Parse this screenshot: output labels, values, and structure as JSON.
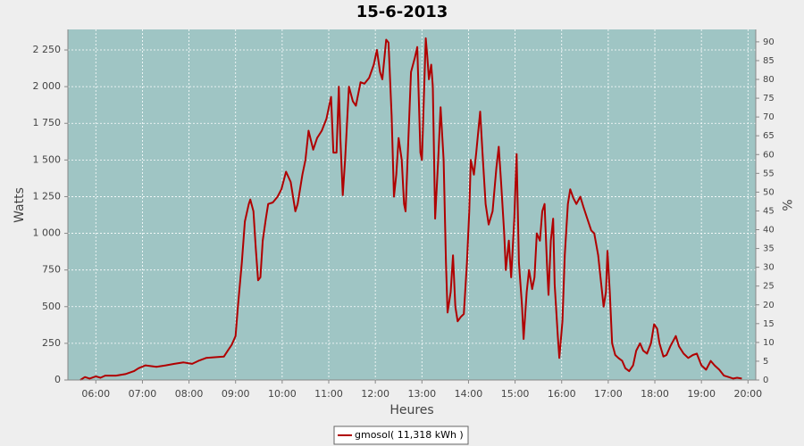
{
  "chart_data": {
    "type": "line",
    "title": "15-6-2013",
    "x_label": "Heures",
    "y_label": "Watts",
    "y2_label": "%",
    "xlim": [
      324,
      1210
    ],
    "xticks": [
      {
        "value": 360,
        "label": "06:00"
      },
      {
        "value": 420,
        "label": "07:00"
      },
      {
        "value": 480,
        "label": "08:00"
      },
      {
        "value": 540,
        "label": "09:00"
      },
      {
        "value": 600,
        "label": "10:00"
      },
      {
        "value": 660,
        "label": "11:00"
      },
      {
        "value": 720,
        "label": "12:00"
      },
      {
        "value": 780,
        "label": "13:00"
      },
      {
        "value": 840,
        "label": "14:00"
      },
      {
        "value": 900,
        "label": "15:00"
      },
      {
        "value": 960,
        "label": "16:00"
      },
      {
        "value": 1020,
        "label": "17:00"
      },
      {
        "value": 1080,
        "label": "18:00"
      },
      {
        "value": 1140,
        "label": "19:00"
      },
      {
        "value": 1200,
        "label": "20:00"
      }
    ],
    "ylim": [
      0,
      2390
    ],
    "yticks": [
      0,
      250,
      500,
      750,
      {
        "value": 1000,
        "label": "1 000"
      },
      {
        "value": 1250,
        "label": "1 250"
      },
      {
        "value": 1500,
        "label": "1 500"
      },
      {
        "value": 1750,
        "label": "1 750"
      },
      {
        "value": 2000,
        "label": "2 000"
      },
      {
        "value": 2250,
        "label": "2 250"
      }
    ],
    "y2lim": [
      0,
      93.3
    ],
    "y2ticks": [
      0,
      5,
      10,
      15,
      20,
      25,
      30,
      35,
      40,
      45,
      50,
      55,
      60,
      65,
      70,
      75,
      80,
      85,
      90
    ],
    "grid": true,
    "legend": "bottom",
    "x": [
      340,
      346,
      352,
      360,
      366,
      372,
      386,
      398,
      409,
      415,
      424,
      438,
      450,
      461,
      473,
      484,
      492,
      502,
      513,
      525,
      530,
      535,
      540,
      543,
      548,
      552,
      557,
      559,
      563,
      566,
      569,
      572,
      575,
      579,
      582,
      588,
      594,
      599,
      605,
      611,
      617,
      620,
      626,
      630,
      634,
      640,
      645,
      651,
      657,
      663,
      666,
      670,
      673,
      675,
      678,
      681,
      686,
      691,
      695,
      701,
      706,
      712,
      718,
      722,
      726,
      729,
      734,
      737,
      741,
      744,
      747,
      750,
      754,
      757,
      759,
      763,
      766,
      771,
      774,
      778,
      780,
      785,
      787,
      789,
      792,
      794,
      797,
      801,
      804,
      808,
      811,
      813,
      817,
      820,
      823,
      826,
      830,
      834,
      838,
      841,
      843,
      847,
      850,
      855,
      858,
      862,
      866,
      871,
      876,
      879,
      882,
      886,
      888,
      892,
      895,
      899,
      902,
      905,
      909,
      911,
      915,
      918,
      922,
      925,
      928,
      932,
      935,
      938,
      941,
      943,
      946,
      949,
      951,
      955,
      957,
      961,
      964,
      968,
      971,
      975,
      979,
      984,
      988,
      993,
      998,
      1002,
      1007,
      1010,
      1014,
      1017,
      1019,
      1022,
      1025,
      1029,
      1033,
      1038,
      1042,
      1047,
      1052,
      1056,
      1061,
      1065,
      1070,
      1075,
      1079,
      1083,
      1086,
      1091,
      1095,
      1100,
      1107,
      1111,
      1117,
      1123,
      1129,
      1134,
      1140,
      1146,
      1152,
      1157,
      1163,
      1169,
      1175,
      1181,
      1186,
      1192
    ],
    "series": [
      {
        "name": "gmosol( 11,318 kWh )",
        "color": "#b00000",
        "values": [
          0,
          20,
          10,
          25,
          15,
          30,
          30,
          40,
          60,
          80,
          100,
          90,
          100,
          110,
          120,
          110,
          130,
          150,
          155,
          160,
          200,
          240,
          300,
          500,
          800,
          1080,
          1200,
          1230,
          1150,
          900,
          680,
          700,
          950,
          1100,
          1200,
          1210,
          1250,
          1300,
          1420,
          1350,
          1150,
          1200,
          1400,
          1500,
          1700,
          1570,
          1650,
          1700,
          1780,
          1930,
          1550,
          1550,
          2000,
          1650,
          1260,
          1500,
          2000,
          1900,
          1870,
          2030,
          2020,
          2060,
          2150,
          2250,
          2100,
          2050,
          2320,
          2300,
          1800,
          1250,
          1400,
          1650,
          1500,
          1200,
          1150,
          1700,
          2100,
          2200,
          2270,
          1550,
          1500,
          2330,
          2200,
          2050,
          2150,
          2000,
          1100,
          1500,
          1860,
          1500,
          800,
          460,
          600,
          850,
          500,
          400,
          430,
          450,
          800,
          1150,
          1500,
          1400,
          1550,
          1830,
          1550,
          1200,
          1060,
          1150,
          1450,
          1590,
          1350,
          1000,
          750,
          950,
          700,
          1100,
          1540,
          800,
          500,
          280,
          600,
          750,
          620,
          700,
          1000,
          950,
          1150,
          1200,
          800,
          580,
          950,
          1100,
          650,
          300,
          150,
          400,
          850,
          1200,
          1300,
          1240,
          1200,
          1250,
          1180,
          1100,
          1020,
          1000,
          850,
          700,
          500,
          600,
          880,
          600,
          250,
          170,
          150,
          130,
          80,
          60,
          100,
          200,
          250,
          200,
          180,
          250,
          380,
          350,
          250,
          160,
          170,
          230,
          300,
          230,
          180,
          150,
          170,
          180,
          100,
          70,
          130,
          100,
          70,
          30,
          20,
          10,
          15,
          10
        ]
      }
    ]
  }
}
